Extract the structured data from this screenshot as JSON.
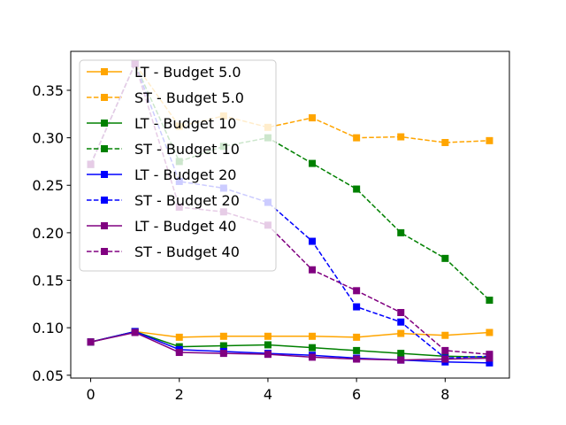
{
  "chart_data": {
    "type": "line",
    "title": "",
    "xlabel": "",
    "ylabel": "",
    "x": [
      0,
      1,
      2,
      3,
      4,
      5,
      6,
      7,
      8,
      9
    ],
    "xlim": [
      -0.45,
      9.45
    ],
    "ylim": [
      0.047,
      0.391
    ],
    "xticks": [
      0,
      2,
      4,
      6,
      8
    ],
    "xtick_labels": [
      "0",
      "2",
      "4",
      "6",
      "8"
    ],
    "yticks": [
      0.05,
      0.1,
      0.15,
      0.2,
      0.25,
      0.3,
      0.35
    ],
    "ytick_labels": [
      "0.05",
      "0.10",
      "0.15",
      "0.20",
      "0.25",
      "0.30",
      "0.35"
    ],
    "grid": false,
    "legend_position": "top-left",
    "series": [
      {
        "name": "LT - Budget 5.0",
        "color": "#ffa500",
        "linestyle": "solid",
        "marker": "square",
        "values": [
          0.085,
          0.096,
          0.09,
          0.091,
          0.091,
          0.091,
          0.09,
          0.094,
          0.092,
          0.095
        ]
      },
      {
        "name": "ST - Budget 5.0",
        "color": "#ffa500",
        "linestyle": "dashed",
        "marker": "square",
        "values": [
          0.272,
          0.378,
          0.312,
          0.323,
          0.311,
          0.321,
          0.3,
          0.301,
          0.295,
          0.297
        ]
      },
      {
        "name": "LT - Budget 10",
        "color": "#008000",
        "linestyle": "solid",
        "marker": "square",
        "values": [
          0.085,
          0.096,
          0.08,
          0.081,
          0.082,
          0.079,
          0.076,
          0.073,
          0.07,
          0.069
        ]
      },
      {
        "name": "ST - Budget 10",
        "color": "#008000",
        "linestyle": "dashed",
        "marker": "square",
        "values": [
          0.272,
          0.378,
          0.275,
          0.291,
          0.3,
          0.273,
          0.246,
          0.2,
          0.173,
          0.129
        ]
      },
      {
        "name": "LT - Budget 20",
        "color": "#0000ff",
        "linestyle": "solid",
        "marker": "square",
        "values": [
          0.085,
          0.096,
          0.077,
          0.075,
          0.073,
          0.071,
          0.068,
          0.066,
          0.064,
          0.063
        ]
      },
      {
        "name": "ST - Budget 20",
        "color": "#0000ff",
        "linestyle": "dashed",
        "marker": "square",
        "values": [
          0.272,
          0.378,
          0.254,
          0.247,
          0.232,
          0.191,
          0.122,
          0.106,
          0.068,
          0.07
        ]
      },
      {
        "name": "LT - Budget 40",
        "color": "#800080",
        "linestyle": "solid",
        "marker": "square",
        "values": [
          0.085,
          0.095,
          0.074,
          0.073,
          0.072,
          0.069,
          0.067,
          0.066,
          0.067,
          0.068
        ]
      },
      {
        "name": "ST - Budget 40",
        "color": "#800080",
        "linestyle": "dashed",
        "marker": "square",
        "values": [
          0.272,
          0.378,
          0.227,
          0.222,
          0.208,
          0.161,
          0.139,
          0.116,
          0.076,
          0.072
        ]
      }
    ]
  }
}
